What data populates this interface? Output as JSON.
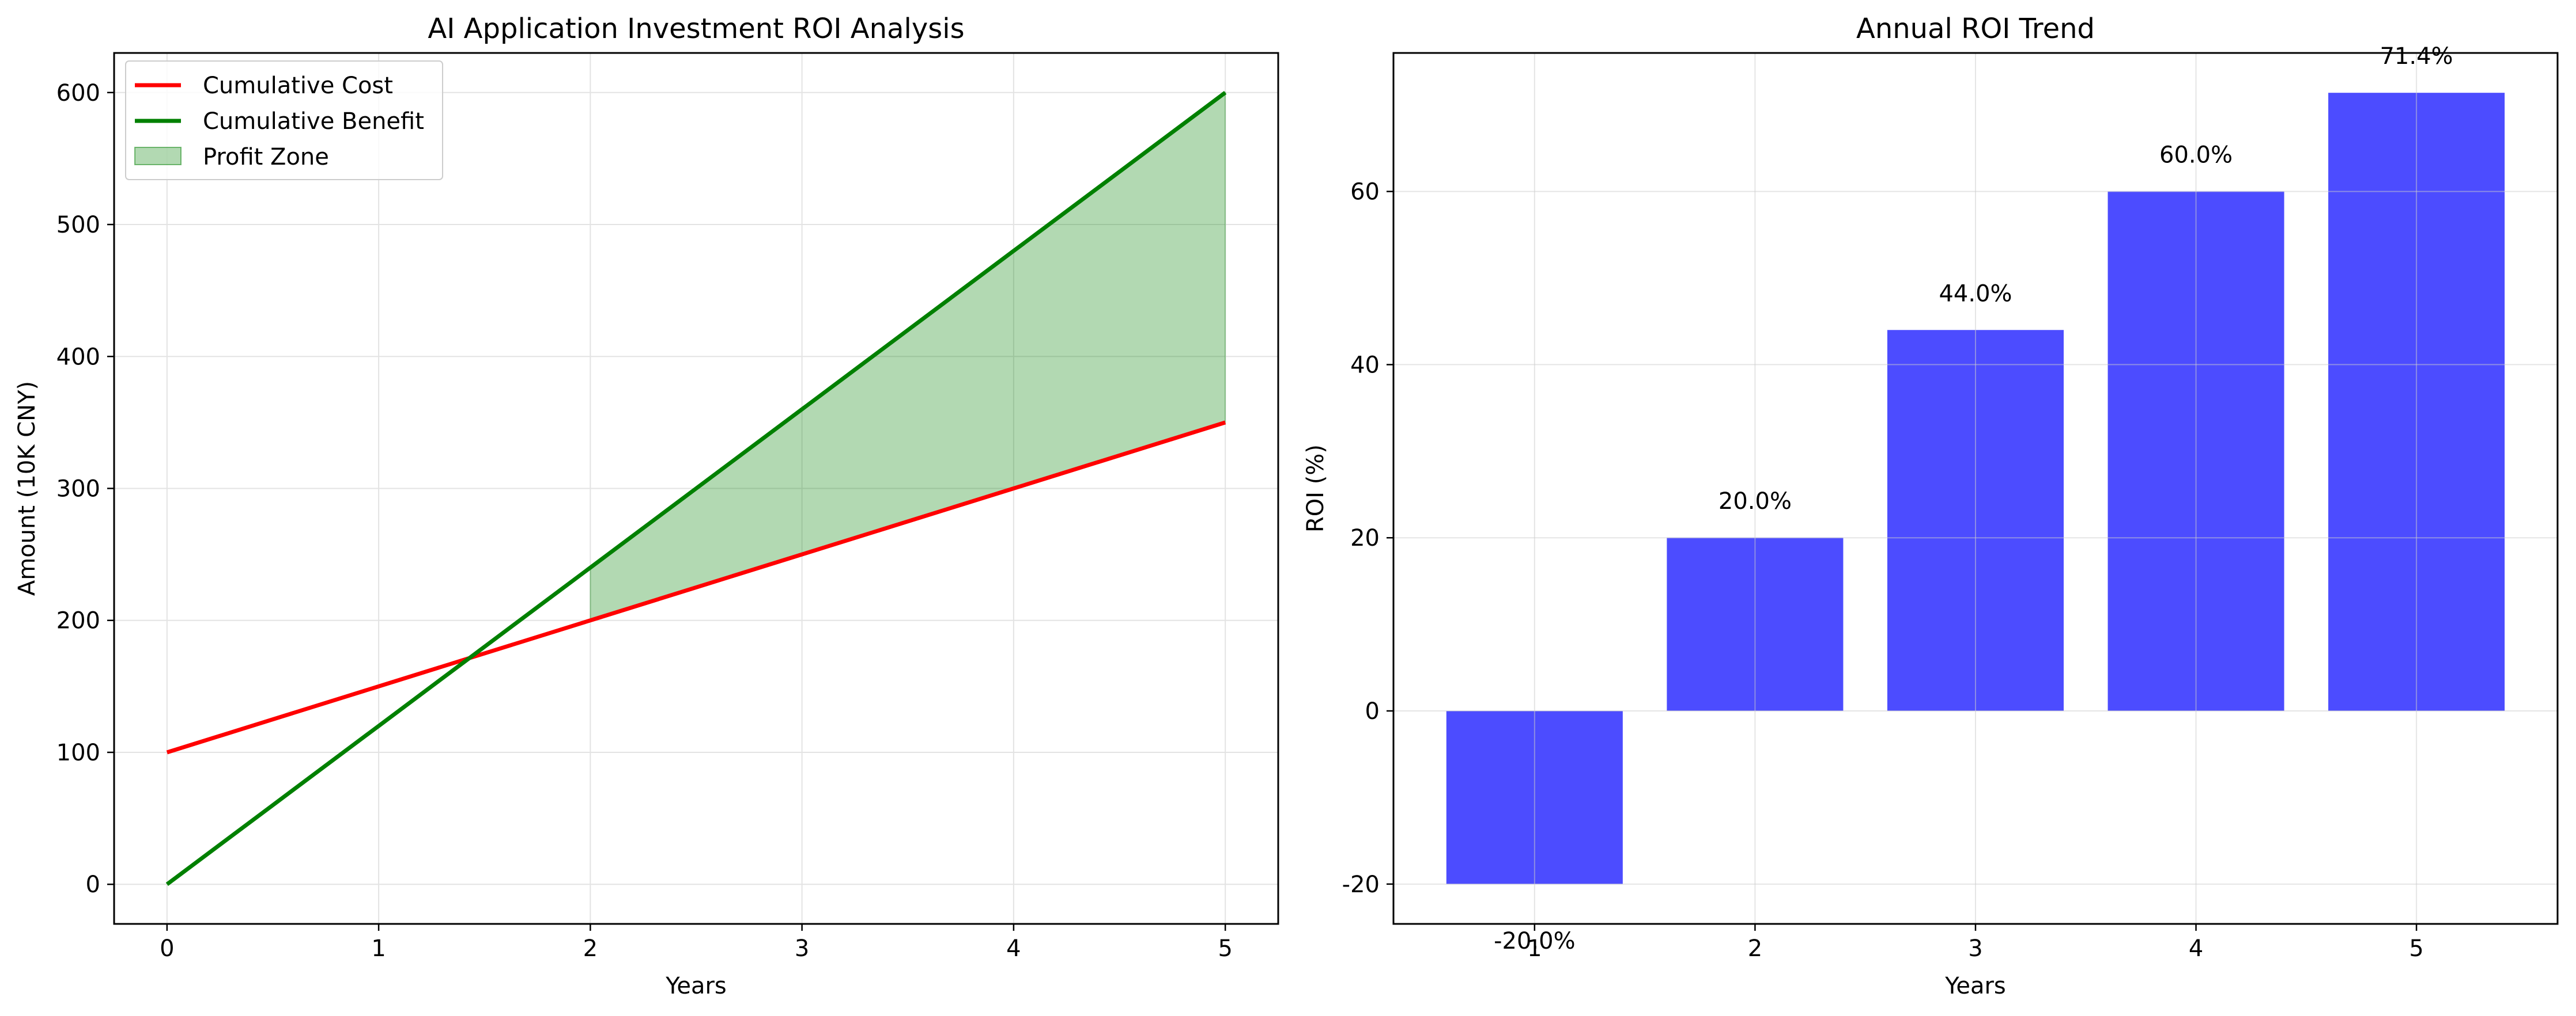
{
  "chart_data": [
    {
      "type": "line",
      "title": "AI Application Investment ROI Analysis",
      "xlabel": "Years",
      "ylabel": "Amount (10K CNY)",
      "xlim": [
        -0.25,
        5.25
      ],
      "ylim": [
        -30,
        630
      ],
      "xticks": [
        0,
        1,
        2,
        3,
        4,
        5
      ],
      "yticks": [
        0,
        100,
        200,
        300,
        400,
        500,
        600
      ],
      "grid": true,
      "legend_position": "top-left",
      "x": [
        0,
        1,
        2,
        3,
        4,
        5
      ],
      "series": [
        {
          "name": "Cumulative Cost",
          "color": "#ff0000",
          "values": [
            100,
            150,
            200,
            250,
            300,
            350
          ]
        },
        {
          "name": "Cumulative Benefit",
          "color": "#008000",
          "values": [
            0,
            120,
            240,
            360,
            480,
            600
          ]
        }
      ],
      "fill": {
        "name": "Profit Zone",
        "color": "#008000",
        "opacity": 0.3,
        "x_from": 2,
        "x_to": 5
      }
    },
    {
      "type": "bar",
      "title": "Annual ROI Trend",
      "xlabel": "Years",
      "ylabel": "ROI (%)",
      "xlim": [
        0.36,
        5.64
      ],
      "ylim": [
        -24.6,
        76.0
      ],
      "xticks": [
        1,
        2,
        3,
        4,
        5
      ],
      "yticks": [
        -20,
        0,
        20,
        40,
        60
      ],
      "grid": true,
      "bar_color": "#0000ff",
      "bar_opacity": 0.7,
      "categories": [
        1,
        2,
        3,
        4,
        5
      ],
      "values": [
        -20.0,
        20.0,
        44.0,
        60.0,
        71.4
      ],
      "data_labels": [
        "-20.0%",
        "20.0%",
        "44.0%",
        "60.0%",
        "71.4%"
      ]
    }
  ]
}
